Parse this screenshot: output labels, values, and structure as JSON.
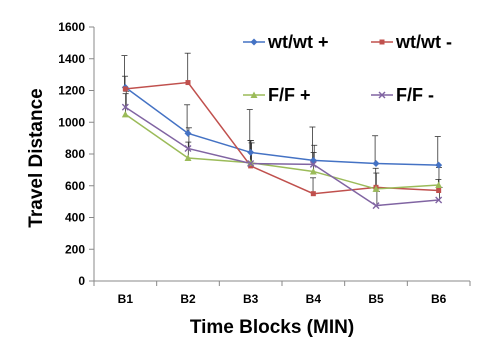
{
  "chart_data": {
    "type": "line",
    "title": "",
    "xlabel": "Time  Blocks (MIN)",
    "ylabel": "Travel Distance",
    "categories": [
      "B1",
      "B2",
      "B3",
      "B4",
      "B5",
      "B6"
    ],
    "ylim": [
      0,
      1600
    ],
    "yticks": [
      "0",
      "200",
      "400",
      "600",
      "800",
      "1000",
      "1200",
      "1400",
      "1600"
    ],
    "grid": false,
    "legend_placement": "top-right",
    "series": [
      {
        "name": "wt/wt +",
        "color": "#4472C4",
        "marker": "diamond",
        "values": [
          1220,
          930,
          810,
          760,
          740,
          730
        ],
        "error": [
          200,
          180,
          270,
          210,
          175,
          180
        ]
      },
      {
        "name": "wt/wt -",
        "color": "#C0504D",
        "marker": "square",
        "values": [
          1210,
          1250,
          725,
          550,
          590,
          570
        ],
        "error": [
          80,
          185,
          160,
          100,
          120,
          70
        ]
      },
      {
        "name": "F/F +",
        "color": "#9BBB59",
        "marker": "triangle",
        "values": [
          1050,
          775,
          745,
          690,
          580,
          605
        ],
        "error": [
          130,
          100,
          140,
          120,
          100,
          110
        ]
      },
      {
        "name": "F/F -",
        "color": "#8064A2",
        "marker": "x",
        "values": [
          1095,
          835,
          740,
          735,
          475,
          510
        ],
        "error": [
          100,
          130,
          130,
          120,
          90,
          80
        ]
      }
    ]
  }
}
